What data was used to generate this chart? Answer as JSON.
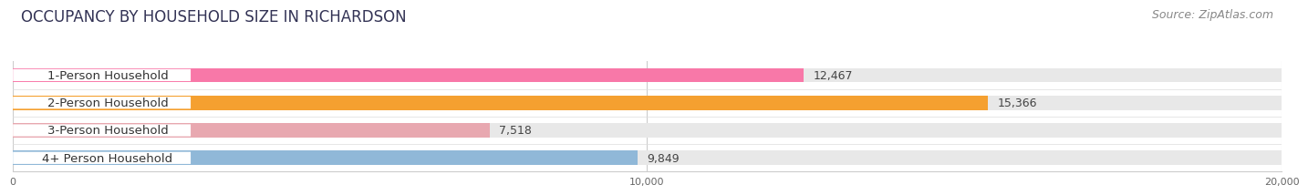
{
  "title": "OCCUPANCY BY HOUSEHOLD SIZE IN RICHARDSON",
  "source": "Source: ZipAtlas.com",
  "categories": [
    "1-Person Household",
    "2-Person Household",
    "3-Person Household",
    "4+ Person Household"
  ],
  "values": [
    12467,
    15366,
    7518,
    9849
  ],
  "bar_colors": [
    "#f878a8",
    "#f5a030",
    "#e8a8b0",
    "#90b8d8"
  ],
  "bg_color_bar": "#e8e8e8",
  "xlim": [
    0,
    20000
  ],
  "xticks": [
    0,
    10000,
    20000
  ],
  "xtick_labels": [
    "0",
    "10,000",
    "20,000"
  ],
  "title_fontsize": 12,
  "source_fontsize": 9,
  "label_fontsize": 9.5,
  "value_fontsize": 9,
  "background_color": "#ffffff",
  "bar_height": 0.52,
  "label_pill_color": "#ffffff"
}
